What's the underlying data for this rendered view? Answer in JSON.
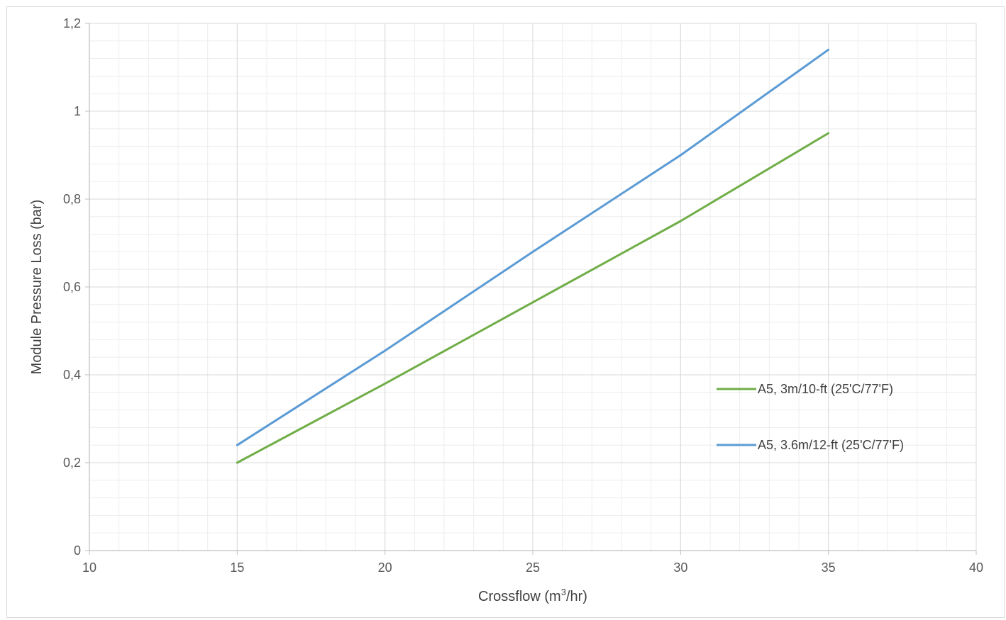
{
  "chart_data": {
    "type": "line",
    "title": "",
    "xlabel": "Crossflow (m",
    "xlabel_sup": "3",
    "xlabel_tail": "/hr)",
    "ylabel": "Module Pressure Loss (bar)",
    "xlim": [
      10,
      40
    ],
    "ylim": [
      0,
      1.2
    ],
    "x_ticks": [
      10,
      15,
      20,
      25,
      30,
      35,
      40
    ],
    "x_tick_labels": [
      "10",
      "15",
      "20",
      "25",
      "30",
      "35",
      "40"
    ],
    "y_ticks": [
      0,
      0.2,
      0.4,
      0.6,
      0.8,
      1,
      1.2
    ],
    "y_tick_labels": [
      "0",
      "0,2",
      "0,4",
      "0,6",
      "0,8",
      "1",
      "1,2"
    ],
    "x_minor_step": 1,
    "y_minor_step": 0.04,
    "grid": true,
    "legend_position": "right",
    "series": [
      {
        "name": "A5, 3m/10-ft (25'C/77'F)",
        "color": "#70ad47",
        "x": [
          15,
          20,
          25,
          30,
          35
        ],
        "y": [
          0.2,
          0.38,
          0.565,
          0.75,
          0.95
        ]
      },
      {
        "name": "A5, 3.6m/12-ft (25'C/77'F)",
        "color": "#5b9bd5",
        "x": [
          15,
          20,
          25,
          30,
          35
        ],
        "y": [
          0.24,
          0.455,
          0.68,
          0.9,
          1.14
        ]
      }
    ]
  }
}
